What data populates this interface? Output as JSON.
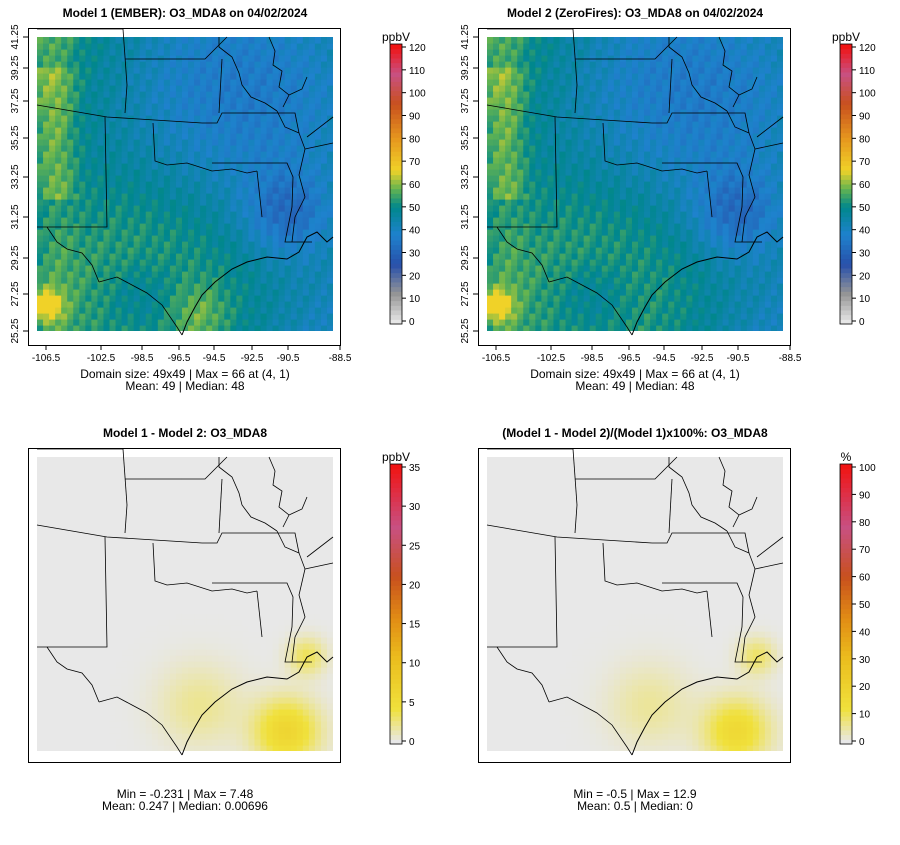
{
  "panels": [
    {
      "id": "p1",
      "title": "Model 1 (EMBER): O3_MDA8 on 04/02/2024",
      "unit": "ppbV",
      "color_scale": "ozone",
      "colorbar_ticks": [
        "0",
        "10",
        "20",
        "30",
        "40",
        "50",
        "60",
        "70",
        "80",
        "90",
        "100",
        "110",
        "120"
      ],
      "show_axes": true,
      "x_ticks": [
        "-106.5",
        "-102.5",
        "-98.5",
        "-96.5",
        "-94.5",
        "-92.5",
        "-90.5",
        "-88.5"
      ],
      "y_ticks": [
        "25.25",
        "27.25",
        "29.25",
        "31.25",
        "33.25",
        "35.25",
        "37.25",
        "39.25",
        "41.25"
      ],
      "stats_line1": "Domain size: 49x49 | Max = 66 at (4, 1)",
      "stats_line2": "Mean: 49 |  Median: 48"
    },
    {
      "id": "p2",
      "title": "Model 2 (ZeroFires): O3_MDA8 on 04/02/2024",
      "unit": "ppbV",
      "color_scale": "ozone",
      "colorbar_ticks": [
        "0",
        "10",
        "20",
        "30",
        "40",
        "50",
        "60",
        "70",
        "80",
        "90",
        "100",
        "110",
        "120"
      ],
      "show_axes": true,
      "x_ticks": [
        "-106.5",
        "-102.5",
        "-98.5",
        "-96.5",
        "-94.5",
        "-92.5",
        "-90.5",
        "-88.5"
      ],
      "y_ticks": [
        "25.25",
        "27.25",
        "29.25",
        "31.25",
        "33.25",
        "35.25",
        "37.25",
        "39.25",
        "41.25"
      ],
      "stats_line1": "Domain size: 49x49 | Max = 66 at (4, 1)",
      "stats_line2": "Mean: 49 |  Median: 48"
    },
    {
      "id": "p3",
      "title": "Model 1 - Model 2: O3_MDA8",
      "unit": "ppbV",
      "color_scale": "difference",
      "colorbar_ticks": [
        "0",
        "5",
        "10",
        "15",
        "20",
        "25",
        "30",
        "35"
      ],
      "show_axes": false,
      "stats_line1": "Min = -0.231 | Max = 7.48",
      "stats_line2": "Mean: 0.247 |  Median: 0.00696"
    },
    {
      "id": "p4",
      "title": "(Model 1 - Model 2)/(Model 1)x100%: O3_MDA8",
      "unit": "%",
      "color_scale": "difference",
      "colorbar_ticks": [
        "0",
        "10",
        "20",
        "30",
        "40",
        "50",
        "60",
        "70",
        "80",
        "90",
        "100"
      ],
      "show_axes": false,
      "stats_line1": "Min = -0.5 | Max = 12.9",
      "stats_line2": "Mean: 0.5 |  Median: 0"
    }
  ],
  "colors": {
    "background": "#ffffff",
    "nodata_gray": "#e6e6e6",
    "boundary": "#000000"
  }
}
